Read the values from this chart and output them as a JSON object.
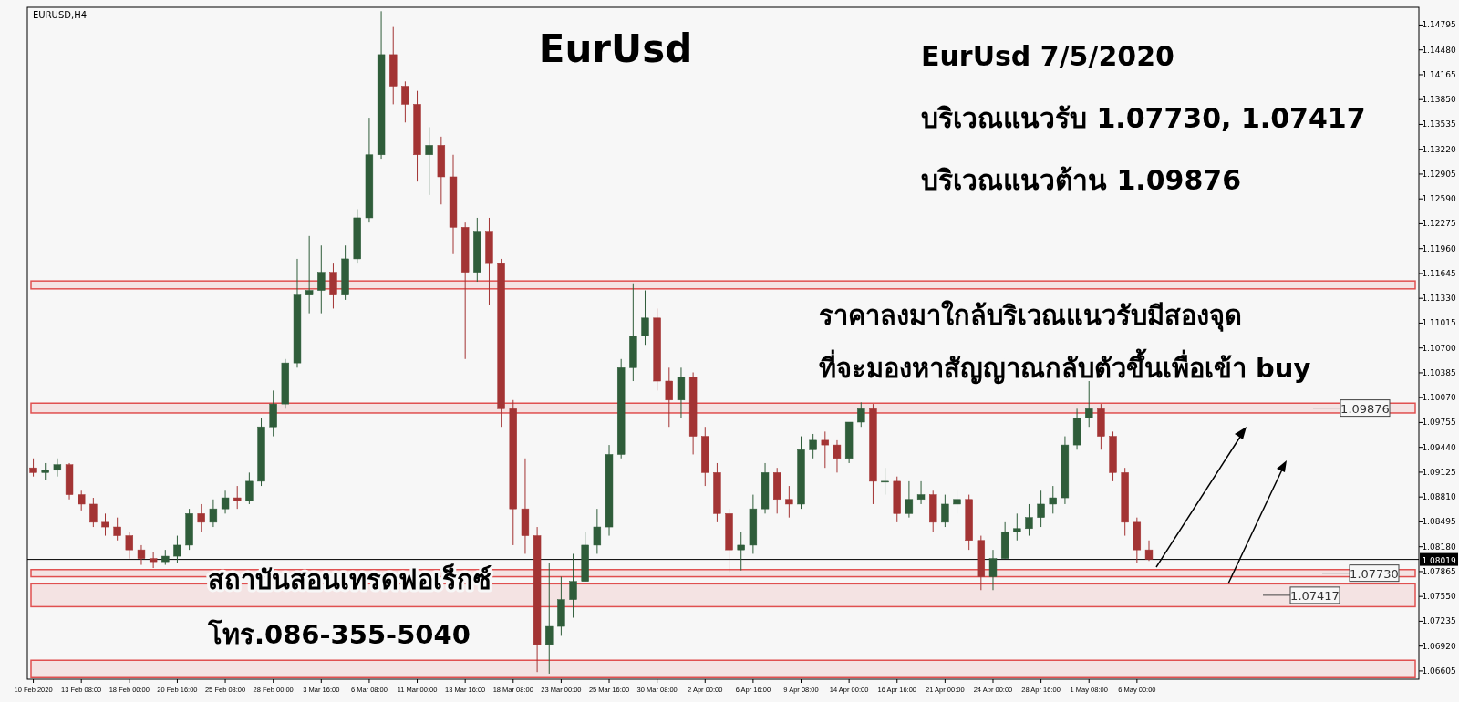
{
  "chart_data": {
    "type": "candlestick",
    "title": "EurUsd",
    "annotations": [
      "EURUSD,H4",
      "EurUsd 7/5/2020",
      "บริเวณแนวรับ 1.07730, 1.07417",
      "บริเวณแนวต้าน 1.09876",
      "ราคาลงมาใกล้บริเวณแนวรับมีสองจุด",
      "ที่จะมองหาสัญญาณกลับตัวขึ้นเพื่อเข้า buy",
      "สถาบันสอนเทรดฟอเร็กซ์",
      "โทร.086-355-5040"
    ],
    "categories": [
      "10 Feb 2020",
      null,
      null,
      null,
      "13 Feb 08:00",
      null,
      null,
      null,
      "18 Feb 00:00",
      null,
      null,
      null,
      "20 Feb 16:00",
      null,
      null,
      null,
      "25 Feb 08:00",
      null,
      null,
      null,
      "28 Feb 00:00",
      null,
      null,
      null,
      "3 Mar 16:00",
      null,
      null,
      null,
      "6 Mar 08:00",
      null,
      null,
      null,
      "11 Mar 00:00",
      null,
      null,
      null,
      "13 Mar 16:00",
      null,
      null,
      null,
      "18 Mar 08:00",
      null,
      null,
      null,
      "23 Mar 00:00",
      null,
      null,
      null,
      "25 Mar 16:00",
      null,
      null,
      null,
      "30 Mar 08:00",
      null,
      null,
      null,
      "2 Apr 00:00",
      null,
      null,
      null,
      "6 Apr 16:00",
      null,
      null,
      null,
      "9 Apr 08:00",
      null,
      null,
      null,
      "14 Apr 00:00",
      null,
      null,
      null,
      "16 Apr 16:00",
      null,
      null,
      null,
      "21 Apr 00:00",
      null,
      null,
      null,
      "24 Apr 00:00",
      null,
      null,
      null,
      "28 Apr 16:00",
      null,
      null,
      null,
      "1 May 08:00",
      null,
      null,
      null,
      "6 May 00:00",
      null,
      null,
      null,
      null,
      null,
      null,
      null,
      null,
      null,
      null,
      null,
      null,
      null,
      null,
      null,
      null,
      null,
      null,
      null,
      null,
      null,
      null,
      null
    ],
    "ohlc": [
      [
        1.0918,
        1.093,
        1.0907,
        1.0912
      ],
      [
        1.0912,
        1.0924,
        1.0903,
        1.0915
      ],
      [
        1.0915,
        1.093,
        1.0907,
        1.0922
      ],
      [
        1.0922,
        1.0924,
        1.0878,
        1.0884
      ],
      [
        1.0884,
        1.0889,
        1.0864,
        1.0872
      ],
      [
        1.0872,
        1.088,
        1.0843,
        1.0849
      ],
      [
        1.0849,
        1.086,
        1.0832,
        1.0843
      ],
      [
        1.0843,
        1.0855,
        1.0826,
        1.0832
      ],
      [
        1.0832,
        1.0837,
        1.0803,
        1.0814
      ],
      [
        1.0814,
        1.082,
        1.0795,
        1.0803
      ],
      [
        1.0803,
        1.0811,
        1.0791,
        1.0799
      ],
      [
        1.0799,
        1.0814,
        1.0795,
        1.0806
      ],
      [
        1.0806,
        1.0832,
        1.0797,
        1.082
      ],
      [
        1.082,
        1.0866,
        1.0814,
        1.086
      ],
      [
        1.086,
        1.0872,
        1.0837,
        1.0849
      ],
      [
        1.0849,
        1.0878,
        1.0843,
        1.0866
      ],
      [
        1.0866,
        1.0889,
        1.086,
        1.088
      ],
      [
        1.088,
        1.0895,
        1.0866,
        1.0876
      ],
      [
        1.0876,
        1.0912,
        1.0872,
        1.0901
      ],
      [
        1.0901,
        1.0981,
        1.0895,
        1.097
      ],
      [
        1.097,
        1.1016,
        1.0958,
        1.0999
      ],
      [
        1.0999,
        1.1056,
        1.0993,
        1.1051
      ],
      [
        1.1051,
        1.1183,
        1.1045,
        1.1137
      ],
      [
        1.1137,
        1.1212,
        1.1114,
        1.1143
      ],
      [
        1.1143,
        1.12,
        1.1114,
        1.1166
      ],
      [
        1.1166,
        1.1177,
        1.112,
        1.1137
      ],
      [
        1.1137,
        1.12,
        1.1131,
        1.1183
      ],
      [
        1.1183,
        1.1246,
        1.1177,
        1.1235
      ],
      [
        1.1235,
        1.1362,
        1.1229,
        1.1315
      ],
      [
        1.1315,
        1.1497,
        1.131,
        1.1442
      ],
      [
        1.1442,
        1.1477,
        1.1379,
        1.1402
      ],
      [
        1.1402,
        1.1408,
        1.1356,
        1.1379
      ],
      [
        1.1379,
        1.1396,
        1.1281,
        1.1315
      ],
      [
        1.1315,
        1.135,
        1.1264,
        1.1327
      ],
      [
        1.1327,
        1.1338,
        1.1252,
        1.1287
      ],
      [
        1.1287,
        1.1315,
        1.1189,
        1.1223
      ],
      [
        1.1223,
        1.1229,
        1.1056,
        1.1166
      ],
      [
        1.1166,
        1.1235,
        1.1154,
        1.1218
      ],
      [
        1.1218,
        1.1235,
        1.1125,
        1.1177
      ],
      [
        1.1177,
        1.1183,
        1.097,
        1.0993
      ],
      [
        1.0993,
        1.1004,
        1.082,
        1.0866
      ],
      [
        1.0866,
        1.093,
        1.0809,
        1.0832
      ],
      [
        1.0832,
        1.0843,
        1.0659,
        1.0694
      ],
      [
        1.0694,
        1.0797,
        1.0657,
        1.0717
      ],
      [
        1.0717,
        1.078,
        1.0705,
        1.0751
      ],
      [
        1.0751,
        1.0809,
        1.0728,
        1.0774
      ],
      [
        1.0774,
        1.0837,
        1.0774,
        1.082
      ],
      [
        1.082,
        1.0866,
        1.0809,
        1.0843
      ],
      [
        1.0843,
        1.0947,
        1.0832,
        1.0935
      ],
      [
        1.0935,
        1.1056,
        1.093,
        1.1045
      ],
      [
        1.1045,
        1.1152,
        1.1028,
        1.1085
      ],
      [
        1.1085,
        1.1143,
        1.1074,
        1.1108
      ],
      [
        1.1108,
        1.112,
        1.1016,
        1.1028
      ],
      [
        1.1028,
        1.1045,
        1.097,
        1.1004
      ],
      [
        1.1004,
        1.1045,
        1.0981,
        1.1033
      ],
      [
        1.1033,
        1.1039,
        1.0935,
        1.0958
      ],
      [
        1.0958,
        1.097,
        1.0895,
        1.0912
      ],
      [
        1.0912,
        1.0924,
        1.0849,
        1.086
      ],
      [
        1.086,
        1.0866,
        1.0786,
        1.0814
      ],
      [
        1.0814,
        1.0837,
        1.0788,
        1.082
      ],
      [
        1.082,
        1.0884,
        1.0809,
        1.0866
      ],
      [
        1.0866,
        1.0924,
        1.086,
        1.0912
      ],
      [
        1.0912,
        1.0918,
        1.086,
        1.0878
      ],
      [
        1.0878,
        1.0895,
        1.0855,
        1.0872
      ],
      [
        1.0872,
        1.0958,
        1.0866,
        1.0941
      ],
      [
        1.0941,
        1.0961,
        1.093,
        1.0953
      ],
      [
        1.0953,
        1.0964,
        1.0918,
        1.0947
      ],
      [
        1.0947,
        1.0953,
        1.0912,
        1.093
      ],
      [
        1.093,
        1.0976,
        1.0924,
        1.0976
      ],
      [
        1.0976,
        1.1001,
        1.097,
        1.0993
      ],
      [
        1.0993,
        1.0999,
        1.0872,
        1.0901
      ],
      [
        1.0901,
        1.0918,
        1.0884,
        1.0901
      ],
      [
        1.0901,
        1.0907,
        1.0849,
        1.086
      ],
      [
        1.086,
        1.0901,
        1.0855,
        1.0878
      ],
      [
        1.0878,
        1.0901,
        1.0872,
        1.0884
      ],
      [
        1.0884,
        1.0889,
        1.0837,
        1.0849
      ],
      [
        1.0849,
        1.0884,
        1.0843,
        1.0872
      ],
      [
        1.0872,
        1.0889,
        1.086,
        1.0878
      ],
      [
        1.0878,
        1.0884,
        1.0814,
        1.0826
      ],
      [
        1.0826,
        1.0832,
        1.0763,
        1.078
      ],
      [
        1.078,
        1.0814,
        1.0763,
        1.0803
      ],
      [
        1.0803,
        1.0849,
        1.0803,
        1.0837
      ],
      [
        1.0837,
        1.086,
        1.0826,
        1.0841
      ],
      [
        1.0841,
        1.0872,
        1.0832,
        1.0855
      ],
      [
        1.0855,
        1.0889,
        1.0843,
        1.0872
      ],
      [
        1.0872,
        1.0895,
        1.086,
        1.088
      ],
      [
        1.088,
        1.0958,
        1.0872,
        1.0947
      ],
      [
        1.0947,
        1.0993,
        1.0941,
        1.0981
      ],
      [
        1.0981,
        1.1028,
        1.097,
        1.0993
      ],
      [
        1.0993,
        1.0999,
        1.0941,
        1.0958
      ],
      [
        1.0958,
        1.0964,
        1.0901,
        1.0912
      ],
      [
        1.0912,
        1.0918,
        1.0832,
        1.0849
      ],
      [
        1.0849,
        1.0855,
        1.0797,
        1.0814
      ],
      [
        1.0814,
        1.0826,
        1.08,
        1.0802
      ],
      null,
      null,
      null,
      null,
      null,
      null,
      null,
      null,
      null,
      null,
      null,
      null,
      null,
      null,
      null,
      null,
      null,
      null,
      null,
      null,
      null,
      null
    ],
    "ylim": [
      1.065,
      1.1502
    ],
    "yticks": [
      1.14795,
      {
        "value": 1.1448,
        "label": "1.14480"
      },
      1.14165,
      {
        "value": 1.1385,
        "label": "1.13850"
      },
      1.13535,
      {
        "value": 1.1322,
        "label": "1.13220"
      },
      1.12905,
      {
        "value": 1.1259,
        "label": "1.12590"
      },
      1.12275,
      {
        "value": 1.1196,
        "label": "1.11960"
      },
      1.11645,
      {
        "value": 1.1133,
        "label": "1.11330"
      },
      1.11015,
      {
        "value": 1.107,
        "label": "1.10700"
      },
      1.10385,
      {
        "value": 1.1007,
        "label": "1.10070"
      },
      1.09755,
      {
        "value": 1.0944,
        "label": "1.09440"
      },
      1.09125,
      {
        "value": 1.0881,
        "label": "1.08810"
      },
      1.08495,
      {
        "value": 1.0818,
        "label": "1.08180"
      },
      1.07865,
      {
        "value": 1.0755,
        "label": "1.07550"
      },
      1.07235,
      {
        "value": 1.0692,
        "label": "1.06920"
      },
      1.06605
    ],
    "ref_lines": [
      {
        "axis": "y",
        "value": 1.08019,
        "label": "1.08019",
        "color": "#000000"
      }
    ],
    "bands": [
      {
        "axis": "y",
        "from": 1.1145,
        "to": 1.1155,
        "color": "#e05050"
      },
      {
        "axis": "y",
        "from": 1.09876,
        "to": 1.1,
        "label": "1.09876",
        "color": "#e05050"
      },
      {
        "axis": "y",
        "from": 1.078,
        "to": 1.0789,
        "label": "1.07730",
        "color": "#e05050"
      },
      {
        "axis": "y",
        "from": 1.0742,
        "to": 1.0771,
        "label": "1.07417",
        "color": "#e05050"
      },
      {
        "axis": "y",
        "from": 1.0652,
        "to": 1.0674,
        "color": "#e05050"
      }
    ]
  }
}
